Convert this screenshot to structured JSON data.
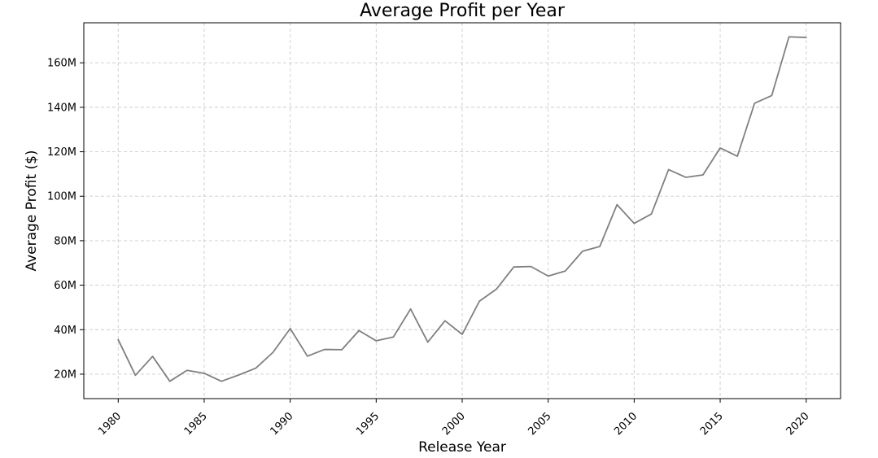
{
  "chart_data": {
    "type": "line",
    "title": "Average Profit per Year",
    "xlabel": "Release Year",
    "ylabel": "Average Profit ($)",
    "xlim": [
      1978,
      2022
    ],
    "ylim": [
      9000000,
      178000000
    ],
    "x_ticks": [
      1980,
      1985,
      1990,
      1995,
      2000,
      2005,
      2010,
      2015,
      2020
    ],
    "x_tick_labels": [
      "1980",
      "1985",
      "1990",
      "1995",
      "2000",
      "2005",
      "2010",
      "2015",
      "2020"
    ],
    "y_ticks": [
      20000000,
      40000000,
      60000000,
      80000000,
      100000000,
      120000000,
      140000000,
      160000000
    ],
    "y_tick_labels": [
      "20M",
      "40M",
      "60M",
      "80M",
      "100M",
      "120M",
      "140M",
      "160M"
    ],
    "grid": true,
    "line_color": "#808080",
    "x": [
      1980,
      1981,
      1982,
      1983,
      1984,
      1985,
      1986,
      1987,
      1988,
      1989,
      1990,
      1991,
      1992,
      1993,
      1994,
      1995,
      1996,
      1997,
      1998,
      1999,
      2000,
      2001,
      2002,
      2003,
      2004,
      2005,
      2006,
      2007,
      2008,
      2009,
      2010,
      2011,
      2012,
      2013,
      2014,
      2015,
      2016,
      2017,
      2018,
      2019,
      2020
    ],
    "series": [
      {
        "values": [
          35500000,
          19500000,
          28000000,
          16800000,
          21700000,
          20400000,
          16800000,
          19600000,
          22700000,
          29800000,
          40500000,
          28100000,
          31100000,
          31000000,
          39600000,
          35000000,
          36700000,
          49300000,
          34400000,
          44000000,
          37900000,
          52800000,
          58300000,
          68200000,
          68400000,
          64100000,
          66400000,
          75300000,
          77400000,
          96200000,
          87800000,
          92000000,
          112000000,
          108500000,
          109600000,
          121700000,
          118000000,
          141800000,
          145300000,
          171700000,
          171400000
        ]
      }
    ]
  }
}
